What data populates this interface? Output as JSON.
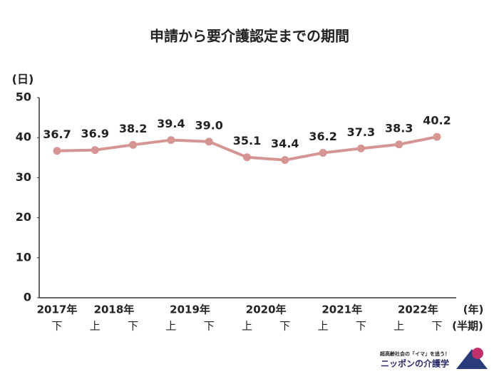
{
  "chart_data": {
    "type": "line",
    "title": "申請から要介護認定までの期間",
    "y_label": "(日)",
    "x_group_label": "(年)",
    "x_label": "(半期)",
    "groups": [
      {
        "label": "2017年",
        "categories": [
          "下"
        ]
      },
      {
        "label": "2018年",
        "categories": [
          "上",
          "下"
        ]
      },
      {
        "label": "2019年",
        "categories": [
          "上",
          "下"
        ]
      },
      {
        "label": "2020年",
        "categories": [
          "上",
          "下"
        ]
      },
      {
        "label": "2021年",
        "categories": [
          "上",
          "下"
        ]
      },
      {
        "label": "2022年",
        "categories": [
          "上",
          "下"
        ]
      }
    ],
    "values": [
      36.7,
      36.9,
      38.2,
      39.4,
      39.0,
      35.1,
      34.4,
      36.2,
      37.3,
      38.3,
      40.2
    ],
    "value_labels": [
      "36.7",
      "36.9",
      "38.2",
      "39.4",
      "39.0",
      "35.1",
      "34.4",
      "36.2",
      "37.3",
      "38.3",
      "40.2"
    ],
    "color": "#d49593",
    "ylim": [
      0,
      50
    ],
    "yticks": [
      0,
      10,
      20,
      30,
      40,
      50
    ],
    "grid": false
  },
  "logo": {
    "tagline": "超高齢社会の「イマ」を追う！",
    "name": "ニッポンの介護学"
  }
}
